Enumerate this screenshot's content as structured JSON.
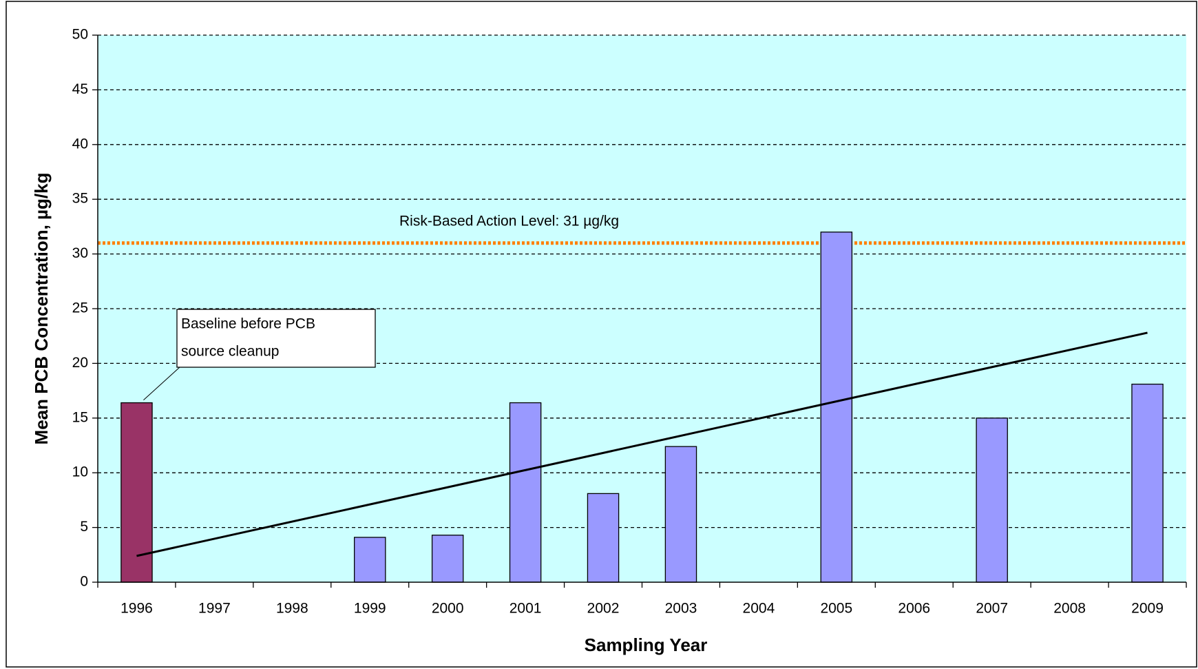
{
  "chart_data": {
    "type": "bar",
    "xlabel": "Sampling Year",
    "ylabel": "Mean PCB Concentration, µg/kg",
    "categories": [
      "1996",
      "1997",
      "1998",
      "1999",
      "2000",
      "2001",
      "2002",
      "2003",
      "2004",
      "2005",
      "2006",
      "2007",
      "2008",
      "2009"
    ],
    "values": [
      16.4,
      null,
      null,
      4.1,
      4.3,
      16.4,
      8.1,
      12.4,
      null,
      32,
      null,
      15,
      null,
      18.1
    ],
    "colors": [
      "#993366",
      "#9999ff",
      "#9999ff",
      "#9999ff",
      "#9999ff",
      "#9999ff",
      "#9999ff",
      "#9999ff",
      "#9999ff",
      "#9999ff",
      "#9999ff",
      "#9999ff",
      "#9999ff",
      "#9999ff"
    ],
    "ylim": [
      0,
      50
    ],
    "yticks": [
      0,
      5,
      10,
      15,
      20,
      25,
      30,
      35,
      40,
      45,
      50
    ],
    "grid": true,
    "plot_background": "#ccffff",
    "trendline": {
      "start": 2.4,
      "end": 22.8,
      "color": "#000000"
    },
    "threshold": {
      "value": 31,
      "label": "Risk-Based Action Level:  31 µg/kg",
      "color": "#ff8000"
    },
    "annotation": {
      "lines": [
        "Baseline before PCB",
        "source cleanup"
      ],
      "category_index": 0
    }
  }
}
